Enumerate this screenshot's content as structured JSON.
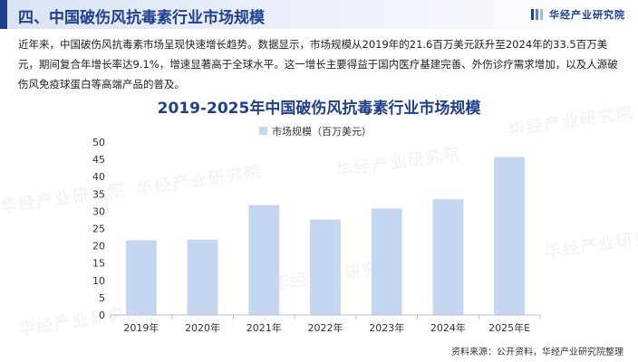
{
  "header": {
    "section_title": "四、中国破伤风抗毒素行业市场规模",
    "brand": "华经产业研究院"
  },
  "intro_text": "近年来，中国破伤风抗毒素市场呈现快速增长趋势。数据显示，市场规模从2019年的21.6百万美元跃升至2024年的33.5百万美元，期间复合年增长率达9.1%，增速显著高于全球水平。这一增长主要得益于国内医疗基建完善、外伤诊疗需求增加，以及人源破伤风免疫球蛋白等高端产品的普及。",
  "chart_data": {
    "type": "bar",
    "title": "2019-2025年中国破伤风抗毒素行业市场规模",
    "categories": [
      "2019年",
      "2020年",
      "2021年",
      "2022年",
      "2023年",
      "2024年",
      "2025年E"
    ],
    "series": [
      {
        "name": "市场规模（百万美元）",
        "values": [
          21.6,
          21.8,
          31.8,
          27.6,
          30.8,
          33.5,
          45.7
        ]
      }
    ],
    "ylim": [
      0,
      50
    ],
    "yticks": [
      0,
      5,
      10,
      15,
      20,
      25,
      30,
      35,
      40,
      45,
      50
    ],
    "legend_position": "top",
    "grid": false,
    "bar_color": "#c5d6f1"
  },
  "watermark": "华经产业研究院",
  "source": "资料来源：公开资料，华经产业研究院整理"
}
